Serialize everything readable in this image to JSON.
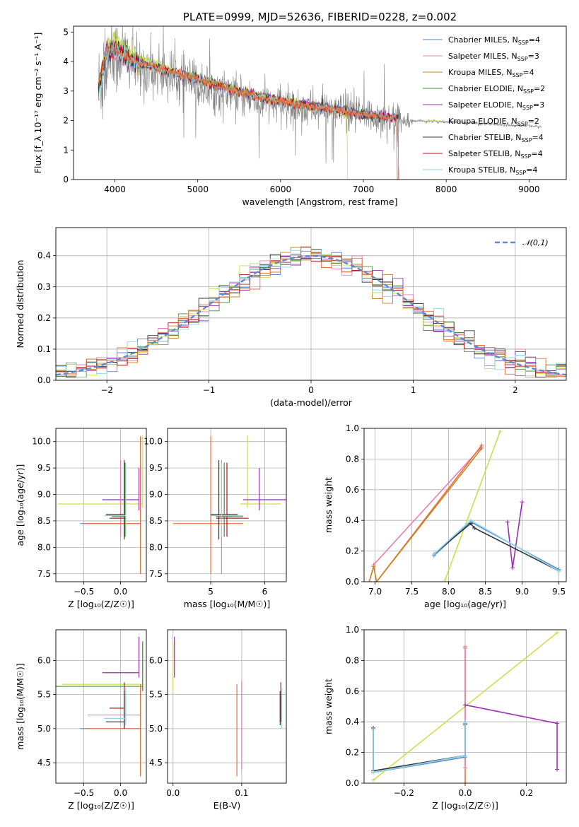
{
  "chart_data": [
    {
      "id": "spectrum",
      "type": "line",
      "title": "PLATE=0999, MJD=52636, FIBERID=0228, z=0.002",
      "xlabel": "wavelength [Angstrom, rest frame]",
      "ylabel": "Flux [f_λ 10⁻¹⁷ erg cm⁻² s⁻¹ A⁻¹]",
      "xlim": [
        3500,
        9450
      ],
      "ylim": [
        0,
        5.2
      ],
      "xticks": [
        4000,
        5000,
        6000,
        7000,
        8000,
        9000
      ],
      "yticks": [
        0,
        1,
        2,
        3,
        4,
        5
      ],
      "grid": false,
      "legend_position": "top-right",
      "data_series": {
        "name": "",
        "color": "#808080",
        "x": [
          3800,
          3850,
          3900,
          3950,
          4000,
          4100,
          4200,
          4300,
          4400,
          4500,
          4600,
          4700,
          4800,
          4900,
          5000,
          5200,
          5400,
          5600,
          5800,
          6000,
          6200,
          6400,
          6600,
          6800,
          7000,
          7200,
          7400,
          7600,
          7800,
          8000,
          8200,
          8400,
          8600,
          8800,
          9000,
          9150
        ],
        "y": [
          3.0,
          3.6,
          4.2,
          4.3,
          4.1,
          4.3,
          4.0,
          3.7,
          3.8,
          3.7,
          3.6,
          3.5,
          3.4,
          3.3,
          3.2,
          3.0,
          2.85,
          2.75,
          2.6,
          2.55,
          2.45,
          2.4,
          2.35,
          2.25,
          2.15,
          2.1,
          2.05,
          2.0,
          1.97,
          1.96,
          1.93,
          1.9,
          1.87,
          1.84,
          1.82,
          1.8
        ],
        "noise": [
          1.5,
          1.8,
          2.0,
          1.8,
          1.3,
          1.1,
          1.0,
          0.9,
          0.9,
          0.8,
          0.8,
          0.8,
          0.8,
          0.8,
          0.7,
          0.7,
          0.7,
          0.6,
          0.6,
          0.6,
          0.6,
          0.6,
          0.6,
          0.6,
          0.6,
          0.6,
          0.5,
          0.05,
          0.05,
          0.05,
          0.05,
          0.05,
          0.05,
          0.05,
          0.05,
          0.05
        ]
      },
      "models": {
        "x": [
          3800,
          3900,
          4000,
          4100,
          4200,
          4400,
          4600,
          4800,
          5000,
          5200,
          5400,
          5600,
          5800,
          6000,
          6200,
          6400,
          6600,
          6800,
          7000,
          7200,
          7400
        ],
        "series": [
          {
            "name": "Chabrier MILES, N_SSP=4",
            "color": "#5b7fd6",
            "y": [
              3.2,
              4.4,
              4.5,
              4.2,
              4.05,
              3.85,
              3.7,
              3.55,
              3.4,
              3.2,
              3.05,
              2.9,
              2.75,
              2.65,
              2.55,
              2.45,
              2.4,
              2.3,
              2.2,
              2.15,
              2.1
            ],
            "end": 7420
          },
          {
            "name": "Salpeter MILES, N_SSP=3",
            "color": "#e77fb4",
            "y": [
              3.3,
              4.4,
              4.4,
              4.2,
              4.05,
              3.85,
              3.7,
              3.55,
              3.4,
              3.2,
              3.05,
              2.9,
              2.75,
              2.65,
              2.55,
              2.45,
              2.4,
              2.3,
              2.2,
              2.15,
              2.1
            ],
            "end": 7420
          },
          {
            "name": "Kroupa MILES, N_SSP=4",
            "color": "#c8862b",
            "y": [
              3.2,
              4.4,
              4.4,
              4.2,
              4.05,
              3.85,
              3.7,
              3.55,
              3.4,
              3.2,
              3.05,
              2.9,
              2.75,
              2.65,
              2.55,
              2.45,
              2.4,
              2.3,
              2.2,
              2.15,
              2.1
            ],
            "end": 7420
          },
          {
            "name": "Chabrier ELODIE, N_SSP=2",
            "color": "#3e8f3e",
            "y": [
              3.0,
              4.3,
              4.5,
              4.3,
              4.1,
              3.9,
              3.75,
              3.6,
              3.45,
              3.25,
              3.1,
              2.95,
              2.8,
              2.7,
              2.6,
              2.5,
              2.45,
              2.35,
              2.2,
              2.15,
              2.1
            ],
            "end": 7420
          },
          {
            "name": "Salpeter ELODIE, N_SSP=3",
            "color": "#9b2fb0",
            "y": [
              3.0,
              4.3,
              4.5,
              4.3,
              4.1,
              3.9,
              3.75,
              3.6,
              3.45,
              3.25,
              3.1,
              2.95,
              2.8,
              2.7,
              2.6,
              2.5,
              2.45,
              2.35,
              2.2,
              2.15,
              2.1
            ],
            "end": 7420
          },
          {
            "name": "Kroupa ELODIE, N_SSP=2",
            "color": "#c6e24c",
            "y": [
              3.0,
              4.5,
              4.8,
              4.6,
              4.3,
              4.0,
              3.8,
              3.6,
              3.45,
              3.25,
              3.1,
              2.95,
              2.8,
              2.7,
              2.6,
              2.5,
              2.4,
              2.2,
              0,
              0,
              0
            ],
            "end": 6800
          },
          {
            "name": "Chabrier STELIB, N_SSP=4",
            "color": "#333333",
            "y": [
              3.0,
              4.3,
              4.4,
              4.2,
              4.05,
              3.85,
              3.7,
              3.55,
              3.4,
              3.2,
              3.05,
              2.9,
              2.75,
              2.65,
              2.55,
              2.45,
              2.4,
              2.3,
              2.2,
              2.15,
              2.1
            ],
            "end": 7420
          },
          {
            "name": "Salpeter STELIB, N_SSP=4",
            "color": "#b8121a",
            "y": [
              3.1,
              4.3,
              4.4,
              4.2,
              4.05,
              3.85,
              3.7,
              3.55,
              3.4,
              3.2,
              3.05,
              2.9,
              2.75,
              2.65,
              2.55,
              2.45,
              2.4,
              2.3,
              2.2,
              2.15,
              2.1
            ],
            "end": 7420
          },
          {
            "name": "Kroupa STELIB, N_SSP=4",
            "color": "#8ed6e6",
            "y": [
              2.8,
              4.3,
              4.4,
              4.2,
              4.05,
              3.85,
              3.7,
              3.55,
              3.4,
              3.2,
              3.05,
              2.9,
              2.75,
              2.65,
              2.55,
              2.45,
              2.4,
              2.3,
              2.2,
              2.15,
              2.1
            ],
            "end": 7420
          }
        ],
        "highlight_color": "#e8713c"
      }
    },
    {
      "id": "residuals",
      "type": "line",
      "title": "",
      "xlabel": "(data-model)/error",
      "ylabel": "Normed distribution",
      "xlim": [
        -2.5,
        2.5
      ],
      "ylim": [
        0,
        0.49
      ],
      "xticks": [
        -2,
        -1,
        0,
        1,
        2
      ],
      "yticks": [
        0.0,
        0.1,
        0.2,
        0.3,
        0.4
      ],
      "grid": true,
      "legend_position": "top-right",
      "bin_width": 0.1,
      "gaussian": {
        "name": "𝒩(0,1)",
        "color": "#5b8bd6",
        "mu": 0,
        "sigma": 1
      }
    },
    {
      "id": "age_vs_Z",
      "type": "errorbar",
      "xlabel": "Z [log₁₀(Z/Z☉)]",
      "ylabel": "age  [log₁₀(age/yr)]",
      "xlim": [
        -0.88,
        0.35
      ],
      "ylim": [
        7.35,
        10.25
      ],
      "xticks": [
        -0.5,
        0.0
      ],
      "yticks": [
        7.5,
        8.0,
        8.5,
        9.0,
        9.5,
        10.0
      ],
      "grid": true,
      "points": [
        {
          "color": "#c6e24c",
          "x": -0.85,
          "x2": 0.3,
          "y": 8.82,
          "y1": 8.75,
          "y2": 10.12
        },
        {
          "color": "#9b2fb0",
          "x": -0.25,
          "x2": 0.25,
          "y": 8.9,
          "y1": 8.7,
          "y2": 9.5
        },
        {
          "color": "#5b8bd6",
          "x": -0.55,
          "x2": 0.27,
          "y": 8.45,
          "y1": 7.5,
          "y2": 10.1
        },
        {
          "color": "#e77fb4",
          "x": -0.1,
          "x2": 0.0,
          "y": 8.6,
          "y1": 8.2,
          "y2": 9.65
        },
        {
          "color": "#e8713c",
          "x": -0.5,
          "x2": 0.27,
          "y": 8.45,
          "y1": 7.5,
          "y2": 10.1
        },
        {
          "color": "#333333",
          "x": -0.2,
          "x2": 0.05,
          "y": 8.62,
          "y1": 8.15,
          "y2": 9.65
        },
        {
          "color": "#b8121a",
          "x": -0.15,
          "x2": 0.05,
          "y": 8.55,
          "y1": 8.2,
          "y2": 9.6
        },
        {
          "color": "#3e8f3e",
          "x": -0.12,
          "x2": 0.06,
          "y": 8.58,
          "y1": 8.2,
          "y2": 9.6
        },
        {
          "color": "#8ed6e6",
          "x": -0.22,
          "x2": 0.07,
          "y": 8.6,
          "y1": 8.2,
          "y2": 9.6
        }
      ]
    },
    {
      "id": "age_vs_mass",
      "type": "errorbar",
      "xlabel": "mass [log₁₀(M/M☉)]",
      "ylabel": "",
      "xlim": [
        4.2,
        6.4
      ],
      "ylim": [
        7.35,
        10.25
      ],
      "xticks": [
        5,
        6
      ],
      "yticks": [
        7.5,
        8.0,
        8.5,
        9.0,
        9.5,
        10.0
      ],
      "grid": true,
      "points": [
        {
          "color": "#c6e24c",
          "x1": 5.55,
          "x2": 6.3,
          "x": 5.68,
          "y": 8.82,
          "y1": 8.75,
          "y2": 10.12
        },
        {
          "color": "#9b2fb0",
          "x1": 5.6,
          "x2": 6.4,
          "x": 5.9,
          "y": 8.9,
          "y1": 8.7,
          "y2": 9.5
        },
        {
          "color": "#e8713c",
          "x1": 4.3,
          "x2": 5.6,
          "x": 5.0,
          "y": 8.45,
          "y1": 7.5,
          "y2": 10.1
        },
        {
          "color": "#e77fb4",
          "x1": 5.0,
          "x2": 5.4,
          "x": 5.2,
          "y": 8.6,
          "y1": 7.5,
          "y2": 9.65
        },
        {
          "color": "#333333",
          "x1": 5.0,
          "x2": 5.5,
          "x": 5.15,
          "y": 8.62,
          "y1": 8.15,
          "y2": 9.65
        },
        {
          "color": "#b8121a",
          "x1": 5.1,
          "x2": 5.7,
          "x": 5.3,
          "y": 8.55,
          "y1": 8.2,
          "y2": 9.6
        },
        {
          "color": "#3e8f3e",
          "x1": 5.1,
          "x2": 5.6,
          "x": 5.25,
          "y": 8.58,
          "y1": 8.2,
          "y2": 9.6
        },
        {
          "color": "#8ed6e6",
          "x1": 5.0,
          "x2": 5.6,
          "x": 5.2,
          "y": 8.6,
          "y1": 8.2,
          "y2": 9.6
        }
      ]
    },
    {
      "id": "weight_vs_age",
      "type": "line",
      "xlabel": "age  [log₁₀(age/yr)]",
      "ylabel": "mass weight",
      "xlim": [
        6.85,
        9.6
      ],
      "ylim": [
        0,
        1.0
      ],
      "xticks": [
        7.0,
        7.5,
        8.0,
        8.5,
        9.0,
        9.5
      ],
      "yticks": [
        0.0,
        0.2,
        0.4,
        0.6,
        0.8,
        1.0
      ],
      "grid": true,
      "series": [
        {
          "color": "#e77fb4",
          "x": [
            6.98,
            8.45
          ],
          "y": [
            0.11,
            0.88
          ]
        },
        {
          "color": "#e8713c",
          "x": [
            6.92,
            6.98,
            7.02,
            8.45
          ],
          "y": [
            0.0,
            0.1,
            0.0,
            0.89
          ]
        },
        {
          "color": "#c8862b",
          "x": [
            6.92,
            6.98,
            7.02,
            8.45
          ],
          "y": [
            0.0,
            0.1,
            0.0,
            0.87
          ]
        },
        {
          "color": "#c6e24c",
          "x": [
            7.95,
            8.7
          ],
          "y": [
            0.01,
            0.98
          ]
        },
        {
          "color": "#9b2fb0",
          "x": [
            8.8,
            8.87,
            9.0
          ],
          "y": [
            0.39,
            0.09,
            0.52
          ]
        },
        {
          "color": "#5b8bd6",
          "x": [
            7.8,
            8.3,
            9.5
          ],
          "y": [
            0.17,
            0.39,
            0.08
          ]
        },
        {
          "color": "#333333",
          "x": [
            7.8,
            8.3,
            8.35,
            9.5
          ],
          "y": [
            0.18,
            0.38,
            0.35,
            0.07
          ]
        },
        {
          "color": "#8ed6e6",
          "x": [
            7.8,
            8.3,
            9.5
          ],
          "y": [
            0.18,
            0.4,
            0.07
          ]
        }
      ]
    },
    {
      "id": "mass_vs_Z",
      "type": "errorbar",
      "xlabel": "Z [log₁₀(Z/Z☉)]",
      "ylabel": "mass [log₁₀(M/M☉)]",
      "xlim": [
        -0.88,
        0.35
      ],
      "ylim": [
        4.2,
        6.45
      ],
      "xticks": [
        -0.5,
        0.0
      ],
      "yticks": [
        4.5,
        5.0,
        5.5,
        6.0
      ],
      "grid": true,
      "points": [
        {
          "color": "#c6e24c",
          "x1": -0.8,
          "x2": 0.3,
          "y": 5.65,
          "y1": 5.55,
          "y2": 6.28
        },
        {
          "color": "#3e8f3e",
          "x1": -0.88,
          "x2": 0.3,
          "y": 5.62,
          "y1": 5.55,
          "y2": 6.28
        },
        {
          "color": "#9b2fb0",
          "x1": -0.25,
          "x2": 0.25,
          "y": 5.82,
          "y1": 5.75,
          "y2": 6.35
        },
        {
          "color": "#b8121a",
          "x1": -0.15,
          "x2": 0.05,
          "y": 5.3,
          "y1": 5.0,
          "y2": 5.68
        },
        {
          "color": "#e77fb4",
          "x1": -0.45,
          "x2": 0.27,
          "y": 5.2,
          "y1": 4.9,
          "y2": 5.6
        },
        {
          "color": "#5b8bd6",
          "x1": -0.55,
          "x2": 0.27,
          "y": 5.0,
          "y1": 4.3,
          "y2": 5.65
        },
        {
          "color": "#e8713c",
          "x1": -0.5,
          "x2": 0.27,
          "y": 5.0,
          "y1": 4.3,
          "y2": 5.65
        },
        {
          "color": "#333333",
          "x1": -0.2,
          "x2": 0.05,
          "y": 5.1,
          "y1": 5.0,
          "y2": 5.55
        },
        {
          "color": "#8ed6e6",
          "x1": -0.22,
          "x2": 0.07,
          "y": 5.15,
          "y1": 5.05,
          "y2": 5.6
        }
      ]
    },
    {
      "id": "mass_vs_ebv",
      "type": "errorbar",
      "xlabel": "E(B-V)",
      "ylabel": "",
      "xlim": [
        -0.008,
        0.165
      ],
      "ylim": [
        4.2,
        6.45
      ],
      "xticks": [
        0.0,
        0.1
      ],
      "yticks": [
        4.5,
        5.0,
        5.5,
        6.0
      ],
      "grid": true,
      "points": [
        {
          "color": "#c6e24c",
          "x": 0.0,
          "y1": 5.55,
          "y2": 6.28
        },
        {
          "color": "#9b2fb0",
          "x": 0.002,
          "y1": 5.75,
          "y2": 6.35
        },
        {
          "color": "#e8713c",
          "x": 0.093,
          "y1": 4.3,
          "y2": 5.65
        },
        {
          "color": "#e77fb4",
          "x": 0.1,
          "y1": 4.4,
          "y2": 5.7
        },
        {
          "color": "#333333",
          "x": 0.156,
          "y1": 5.05,
          "y2": 5.55
        },
        {
          "color": "#b8121a",
          "x": 0.157,
          "y1": 5.1,
          "y2": 5.68
        },
        {
          "color": "#8ed6e6",
          "x": 0.158,
          "y1": 5.0,
          "y2": 5.6
        }
      ]
    },
    {
      "id": "weight_vs_Z",
      "type": "line",
      "xlabel": "Z [log₁₀(Z/Z☉)]",
      "ylabel": "mass weight",
      "xlim": [
        -0.33,
        0.33
      ],
      "ylim": [
        0,
        1.0
      ],
      "xticks": [
        -0.2,
        0.0,
        0.2
      ],
      "yticks": [
        0.0,
        0.2,
        0.4,
        0.6,
        0.8,
        1.0
      ],
      "grid": true,
      "series": [
        {
          "color": "#c6e24c",
          "x": [
            -0.3,
            0.3
          ],
          "y": [
            0.02,
            0.98
          ]
        },
        {
          "color": "#e8713c",
          "x": [
            0.0,
            0.0
          ],
          "y": [
            0.0,
            0.89
          ]
        },
        {
          "color": "#e77fb4",
          "x": [
            0.0,
            0.0
          ],
          "y": [
            0.1,
            0.88
          ]
        },
        {
          "color": "#9b2fb0",
          "x": [
            0.0,
            0.3,
            0.3
          ],
          "y": [
            0.51,
            0.39,
            0.09
          ]
        },
        {
          "color": "#5b8bd6",
          "x": [
            -0.3,
            -0.3,
            0.0,
            0.0
          ],
          "y": [
            0.35,
            0.07,
            0.17,
            0.39
          ]
        },
        {
          "color": "#333333",
          "x": [
            -0.3,
            -0.3,
            0.0,
            0.0
          ],
          "y": [
            0.36,
            0.08,
            0.18,
            0.38
          ]
        },
        {
          "color": "#8ed6e6",
          "x": [
            -0.3,
            -0.3,
            0.0,
            0.0
          ],
          "y": [
            0.35,
            0.07,
            0.18,
            0.4
          ]
        }
      ]
    }
  ]
}
